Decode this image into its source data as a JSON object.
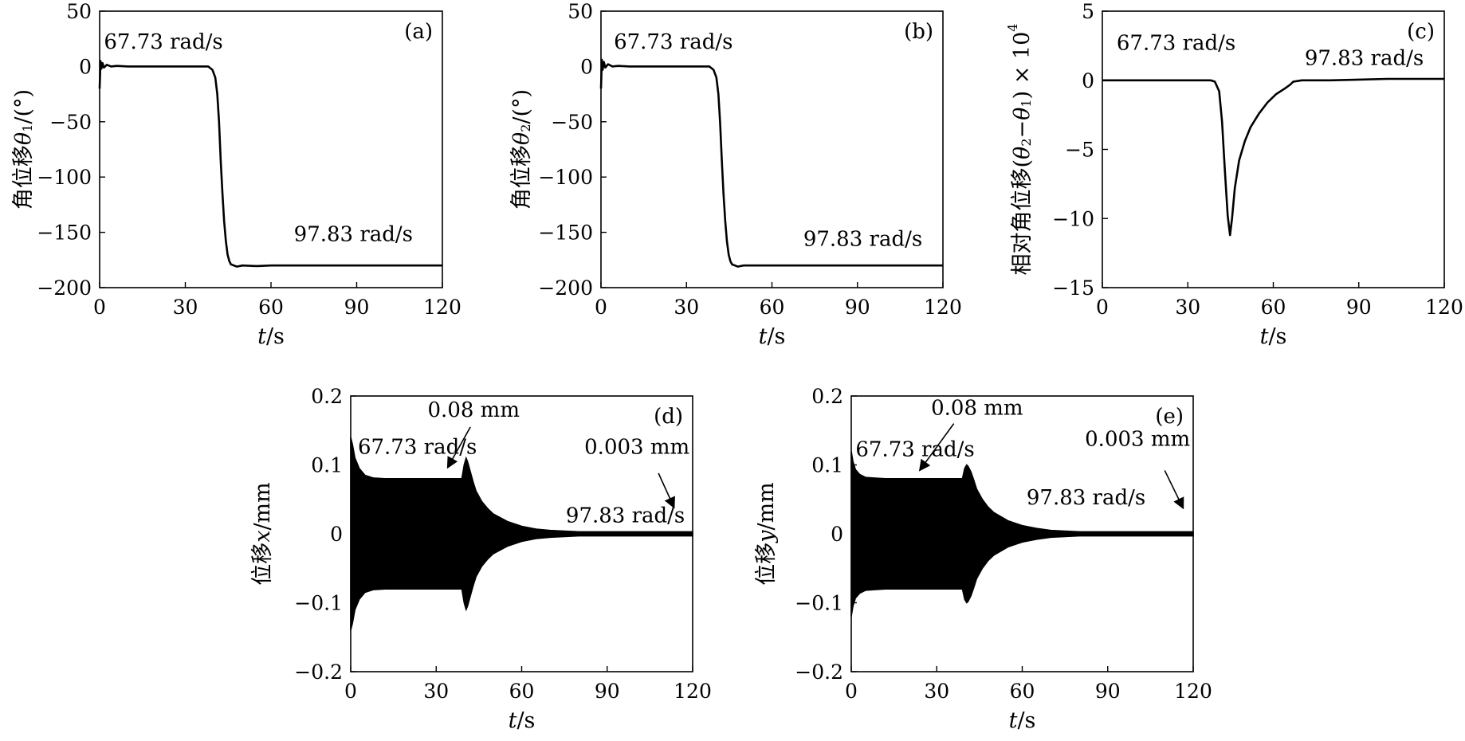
{
  "chart_data": [
    {
      "id": "a",
      "type": "line",
      "panel_label": "(a)",
      "xlabel": {
        "var": "t",
        "unit": "/s"
      },
      "ylabel": {
        "text": "角位移",
        "var": "θ",
        "sub": "1",
        "unit": "/(°)"
      },
      "xlim": [
        0,
        120
      ],
      "ylim": [
        -200,
        50
      ],
      "xticks": [
        0,
        30,
        60,
        90,
        120
      ],
      "yticks": [
        -200,
        -150,
        -100,
        -50,
        0,
        50
      ],
      "yticklabels": [
        "−200",
        "−150",
        "−100",
        "−50",
        "0",
        "50"
      ],
      "series": [
        {
          "x": [
            0,
            0.3,
            0.6,
            1.0,
            1.5,
            2.5,
            4,
            6,
            10,
            20,
            30,
            38,
            39.5,
            40.5,
            41.2,
            41.8,
            42.4,
            43,
            43.6,
            44.2,
            44.8,
            45.4,
            46,
            47,
            48,
            50,
            55,
            60,
            70,
            80,
            90,
            100,
            110,
            120
          ],
          "y": [
            -20,
            5,
            -2,
            3,
            -1,
            1.5,
            0,
            0.5,
            0,
            0,
            0,
            0,
            -3,
            -10,
            -25,
            -50,
            -85,
            -115,
            -140,
            -158,
            -170,
            -176,
            -179,
            -180,
            -181,
            -180,
            -180.5,
            -180,
            -180,
            -180,
            -180,
            -180,
            -180,
            -180
          ]
        }
      ],
      "annotations": [
        {
          "text": "67.73 rad/s",
          "x": 1.5,
          "y": 16
        },
        {
          "text": "97.83 rad/s",
          "x": 68,
          "y": -158
        }
      ]
    },
    {
      "id": "b",
      "type": "line",
      "panel_label": "(b)",
      "xlabel": {
        "var": "t",
        "unit": "/s"
      },
      "ylabel": {
        "text": "角位移",
        "var": "θ",
        "sub": "2",
        "unit": "/(°)"
      },
      "xlim": [
        0,
        120
      ],
      "ylim": [
        -200,
        50
      ],
      "xticks": [
        0,
        30,
        60,
        90,
        120
      ],
      "yticks": [
        -200,
        -150,
        -100,
        -50,
        0,
        50
      ],
      "yticklabels": [
        "−200",
        "−150",
        "−100",
        "−50",
        "0",
        "50"
      ],
      "series": [
        {
          "x": [
            0,
            0.3,
            0.6,
            1.0,
            1.5,
            2.5,
            4,
            6,
            10,
            20,
            30,
            38,
            39.5,
            40.5,
            41.2,
            41.8,
            42.4,
            43,
            43.6,
            44.2,
            44.8,
            45.4,
            46,
            47,
            48,
            50,
            55,
            60,
            70,
            80,
            90,
            100,
            110,
            120
          ],
          "y": [
            -20,
            6,
            -3,
            4,
            -1,
            2,
            0,
            0.5,
            0,
            0,
            0,
            0,
            -3,
            -10,
            -25,
            -50,
            -85,
            -115,
            -140,
            -158,
            -170,
            -176,
            -179,
            -180,
            -181,
            -180,
            -180,
            -180,
            -180,
            -180,
            -180,
            -180,
            -180,
            -180
          ]
        }
      ],
      "annotations": [
        {
          "text": "67.73 rad/s",
          "x": 4.5,
          "y": 16
        },
        {
          "text": "97.83 rad/s",
          "x": 71,
          "y": -162
        }
      ]
    },
    {
      "id": "c",
      "type": "line",
      "panel_label": "(c)",
      "xlabel": {
        "var": "t",
        "unit": "/s"
      },
      "ylabel": {
        "text": "相对角位移",
        "pre": "(",
        "var1": "θ",
        "sub1": "2",
        "mid": "−",
        "var2": "θ",
        "sub2": "1",
        "post": ") × 10",
        "sup": "4"
      },
      "xlim": [
        0,
        120
      ],
      "ylim": [
        -15,
        5
      ],
      "xticks": [
        0,
        30,
        60,
        90,
        120
      ],
      "yticks": [
        -15,
        -10,
        -5,
        0,
        5
      ],
      "yticklabels": [
        "−15",
        "−10",
        "−5",
        "0",
        "5"
      ],
      "series": [
        {
          "x": [
            0,
            20,
            38,
            39.5,
            41,
            42,
            43,
            44,
            44.8,
            45.5,
            46.5,
            48,
            50,
            52,
            55,
            58,
            61,
            64,
            66,
            67,
            70,
            80,
            90,
            100,
            110,
            120
          ],
          "y": [
            0,
            0,
            0,
            -0.1,
            -0.8,
            -3,
            -6.5,
            -9.8,
            -11.2,
            -10,
            -7.8,
            -5.8,
            -4.4,
            -3.4,
            -2.4,
            -1.6,
            -1.0,
            -0.6,
            -0.3,
            -0.1,
            0,
            0,
            0.05,
            0.1,
            0.1,
            0.1
          ]
        }
      ],
      "annotations": [
        {
          "text": "67.73 rad/s",
          "x": 5,
          "y": 2.2
        },
        {
          "text": "97.83 rad/s",
          "x": 71,
          "y": 1.1
        }
      ]
    },
    {
      "id": "d",
      "type": "area",
      "panel_label": "(d)",
      "xlabel": {
        "var": "t",
        "unit": "/s"
      },
      "ylabel": {
        "text": "位移",
        "var": "x",
        "unit": "/mm"
      },
      "xlim": [
        0,
        120
      ],
      "ylim": [
        -0.2,
        0.2
      ],
      "xticks": [
        0,
        30,
        60,
        90,
        120
      ],
      "yticks": [
        -0.2,
        -0.1,
        0,
        0.1,
        0.2
      ],
      "yticklabels": [
        "−0.2",
        "−0.1",
        "0",
        "0.1",
        "0.2"
      ],
      "series": [
        {
          "x": [
            0,
            0.6,
            1.5,
            3,
            5,
            8,
            12,
            20,
            30,
            39,
            39.8,
            40.5,
            41,
            42,
            43,
            44,
            46,
            48,
            50,
            55,
            60,
            65,
            70,
            75,
            80,
            90,
            100,
            110,
            120
          ],
          "upper": [
            0.14,
            0.13,
            0.11,
            0.095,
            0.085,
            0.081,
            0.08,
            0.08,
            0.08,
            0.08,
            0.1,
            0.11,
            0.105,
            0.09,
            0.075,
            0.062,
            0.047,
            0.037,
            0.029,
            0.018,
            0.011,
            0.007,
            0.005,
            0.004,
            0.003,
            0.003,
            0.003,
            0.003,
            0.003
          ],
          "lower": [
            -0.14,
            -0.13,
            -0.11,
            -0.095,
            -0.085,
            -0.081,
            -0.08,
            -0.08,
            -0.08,
            -0.08,
            -0.1,
            -0.11,
            -0.105,
            -0.09,
            -0.075,
            -0.062,
            -0.047,
            -0.037,
            -0.029,
            -0.018,
            -0.011,
            -0.007,
            -0.005,
            -0.004,
            -0.003,
            -0.003,
            -0.003,
            -0.003,
            -0.003
          ]
        }
      ],
      "annotations": [
        {
          "text": "0.08 mm",
          "x": 27,
          "y": 0.17
        },
        {
          "text": "67.73 rad/s",
          "x": 2.5,
          "y": 0.116
        },
        {
          "text": "0.003 mm",
          "x": 82,
          "y": 0.116
        },
        {
          "text": "97.83 rad/s",
          "x": 75.5,
          "y": 0.017
        }
      ],
      "arrows": [
        {
          "from": [
            42,
            0.155
          ],
          "to": [
            34,
            0.096
          ]
        },
        {
          "from": [
            108,
            0.088
          ],
          "to": [
            113.5,
            0.038
          ]
        }
      ]
    },
    {
      "id": "e",
      "type": "area",
      "panel_label": "(e)",
      "xlabel": {
        "var": "t",
        "unit": "/s"
      },
      "ylabel": {
        "text": "位移",
        "var": "y",
        "unit": "/mm"
      },
      "xlim": [
        0,
        120
      ],
      "ylim": [
        -0.2,
        0.2
      ],
      "xticks": [
        0,
        30,
        60,
        90,
        120
      ],
      "yticks": [
        -0.2,
        -0.1,
        0,
        0.1,
        0.2
      ],
      "yticklabels": [
        "−0.2",
        "−0.1",
        "0",
        "0.1",
        "0.2"
      ],
      "series": [
        {
          "x": [
            0,
            0.6,
            1.5,
            3,
            5,
            8,
            12,
            20,
            30,
            39,
            39.8,
            40.5,
            41,
            42,
            43,
            44,
            46,
            48,
            50,
            55,
            60,
            65,
            70,
            75,
            80,
            90,
            100,
            110,
            120
          ],
          "upper": [
            0.12,
            0.105,
            0.093,
            0.086,
            0.082,
            0.081,
            0.08,
            0.08,
            0.08,
            0.08,
            0.095,
            0.1,
            0.098,
            0.09,
            0.078,
            0.065,
            0.05,
            0.039,
            0.031,
            0.019,
            0.012,
            0.008,
            0.005,
            0.004,
            0.003,
            0.003,
            0.003,
            0.003,
            0.003
          ],
          "lower": [
            -0.12,
            -0.105,
            -0.093,
            -0.086,
            -0.082,
            -0.081,
            -0.08,
            -0.08,
            -0.08,
            -0.08,
            -0.095,
            -0.1,
            -0.098,
            -0.09,
            -0.078,
            -0.065,
            -0.05,
            -0.039,
            -0.031,
            -0.019,
            -0.012,
            -0.008,
            -0.005,
            -0.004,
            -0.003,
            -0.003,
            -0.003,
            -0.003,
            -0.003
          ]
        }
      ],
      "annotations": [
        {
          "text": "0.08 mm",
          "x": 28,
          "y": 0.173
        },
        {
          "text": "67.73 rad/s",
          "x": 1.5,
          "y": 0.113
        },
        {
          "text": "0.003 mm",
          "x": 82,
          "y": 0.128
        },
        {
          "text": "97.83 rad/s",
          "x": 61.5,
          "y": 0.043
        }
      ],
      "arrows": [
        {
          "from": [
            36,
            0.16
          ],
          "to": [
            24,
            0.092
          ]
        },
        {
          "from": [
            110,
            0.092
          ],
          "to": [
            116.5,
            0.037
          ]
        }
      ]
    }
  ]
}
